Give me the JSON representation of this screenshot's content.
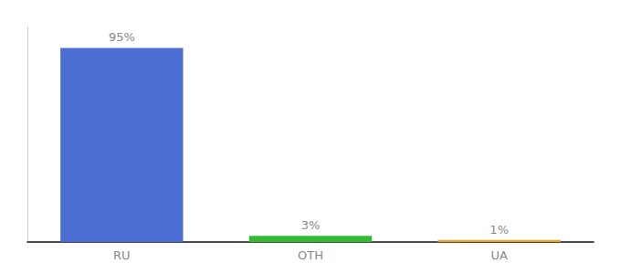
{
  "chart_data": {
    "type": "bar",
    "categories": [
      "RU",
      "OTH",
      "UA"
    ],
    "values": [
      95,
      3,
      1
    ],
    "value_labels": [
      "95%",
      "3%",
      "1%"
    ],
    "colors": [
      "#4d6fd4",
      "#33bb33",
      "#e8a020"
    ],
    "ylim": [
      0,
      105
    ],
    "data_labels": true,
    "tick_labels": "x",
    "grid": false
  }
}
